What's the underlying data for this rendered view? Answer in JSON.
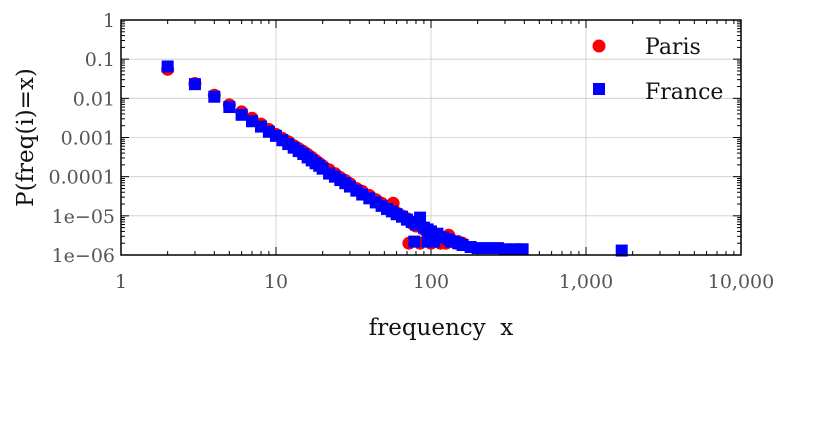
{
  "chart_data": {
    "type": "scatter",
    "xlabel": "frequency  x",
    "ylabel": "P(freq(i)=x)",
    "x_scale": "log",
    "y_scale": "log",
    "xlim": [
      1,
      10000
    ],
    "ylim": [
      1e-06,
      1
    ],
    "x_ticks": [
      1,
      10,
      100,
      1000,
      10000
    ],
    "x_tick_labels": [
      "1",
      "10",
      "100",
      "1,000",
      "10,000"
    ],
    "y_ticks": [
      1,
      0.1,
      0.01,
      0.001,
      0.0001,
      1e-05,
      1e-06
    ],
    "y_tick_labels": [
      "1",
      "0.1",
      "0.01",
      "0.001",
      "0.0001",
      "1e−05",
      "1e−06"
    ],
    "grid": true,
    "legend_position": "top-right",
    "series": [
      {
        "name": "Paris",
        "marker": "circle",
        "color": "#ff0000",
        "points": [
          [
            2,
            0.055
          ],
          [
            3,
            0.024
          ],
          [
            4,
            0.012
          ],
          [
            5,
            0.0068
          ],
          [
            6,
            0.0045
          ],
          [
            7,
            0.0031
          ],
          [
            8,
            0.0022
          ],
          [
            9,
            0.0016
          ],
          [
            10,
            0.0012
          ],
          [
            11,
            0.00095
          ],
          [
            12,
            0.00078
          ],
          [
            13,
            0.00062
          ],
          [
            14,
            0.00052
          ],
          [
            15,
            0.00044
          ],
          [
            16,
            0.00037
          ],
          [
            17,
            0.00031
          ],
          [
            18,
            0.00026
          ],
          [
            19,
            0.00022
          ],
          [
            20,
            0.00019
          ],
          [
            22,
            0.00015
          ],
          [
            24,
            0.00012
          ],
          [
            26,
            9.5e-05
          ],
          [
            28,
            8e-05
          ],
          [
            30,
            6.6e-05
          ],
          [
            33,
            5e-05
          ],
          [
            36,
            4.2e-05
          ],
          [
            40,
            3.3e-05
          ],
          [
            44,
            2.6e-05
          ],
          [
            48,
            2.1e-05
          ],
          [
            52,
            1.7e-05
          ],
          [
            57,
            2.1e-05
          ],
          [
            60,
            1.2e-05
          ],
          [
            65,
            1e-05
          ],
          [
            70,
            8.5e-06
          ],
          [
            75,
            6.5e-06
          ],
          [
            80,
            5.5e-06
          ],
          [
            90,
            4.5e-06
          ],
          [
            100,
            3.8e-06
          ],
          [
            110,
            3e-06
          ],
          [
            120,
            2.8e-06
          ],
          [
            135,
            2.5e-06
          ],
          [
            150,
            2.2e-06
          ],
          [
            160,
            2e-06
          ],
          [
            72,
            2e-06
          ],
          [
            85,
            2e-06
          ],
          [
            100,
            2e-06
          ],
          [
            115,
            2e-06
          ],
          [
            125,
            2e-06
          ],
          [
            145,
            2e-06
          ],
          [
            130,
            3.2e-06
          ]
        ]
      },
      {
        "name": "France",
        "marker": "square",
        "color": "#0000ff",
        "points": [
          [
            2,
            0.065
          ],
          [
            3,
            0.023
          ],
          [
            4,
            0.011
          ],
          [
            5,
            0.006
          ],
          [
            6,
            0.0038
          ],
          [
            7,
            0.0026
          ],
          [
            8,
            0.0019
          ],
          [
            9,
            0.0014
          ],
          [
            10,
            0.0011
          ],
          [
            11,
            0.00085
          ],
          [
            12,
            0.00068
          ],
          [
            13,
            0.00055
          ],
          [
            14,
            0.00045
          ],
          [
            15,
            0.00038
          ],
          [
            16,
            0.00031
          ],
          [
            17,
            0.00026
          ],
          [
            18,
            0.00022
          ],
          [
            19,
            0.00019
          ],
          [
            20,
            0.00016
          ],
          [
            22,
            0.00012
          ],
          [
            24,
            0.0001
          ],
          [
            26,
            8.2e-05
          ],
          [
            28,
            6.8e-05
          ],
          [
            30,
            5.6e-05
          ],
          [
            33,
            4.4e-05
          ],
          [
            36,
            3.5e-05
          ],
          [
            40,
            2.8e-05
          ],
          [
            44,
            2.2e-05
          ],
          [
            48,
            1.8e-05
          ],
          [
            52,
            1.5e-05
          ],
          [
            56,
            1.3e-05
          ],
          [
            60,
            1.1e-05
          ],
          [
            65,
            9.5e-06
          ],
          [
            70,
            8e-06
          ],
          [
            75,
            7e-06
          ],
          [
            80,
            6e-06
          ],
          [
            85,
            9e-06
          ],
          [
            90,
            5e-06
          ],
          [
            95,
            4.5e-06
          ],
          [
            100,
            4e-06
          ],
          [
            110,
            3.5e-06
          ],
          [
            120,
            2.8e-06
          ],
          [
            130,
            2.5e-06
          ],
          [
            140,
            2.2e-06
          ],
          [
            150,
            2e-06
          ],
          [
            160,
            1.8e-06
          ],
          [
            180,
            1.6e-06
          ],
          [
            200,
            1.5e-06
          ],
          [
            230,
            1.5e-06
          ],
          [
            270,
            1.5e-06
          ],
          [
            300,
            1.4e-06
          ],
          [
            350,
            1.4e-06
          ],
          [
            390,
            1.4e-06
          ],
          [
            1700,
            1.3e-06
          ],
          [
            78,
            2.2e-06
          ],
          [
            95,
            2.2e-06
          ],
          [
            105,
            2.2e-06
          ],
          [
            135,
            2.2e-06
          ]
        ]
      }
    ]
  }
}
